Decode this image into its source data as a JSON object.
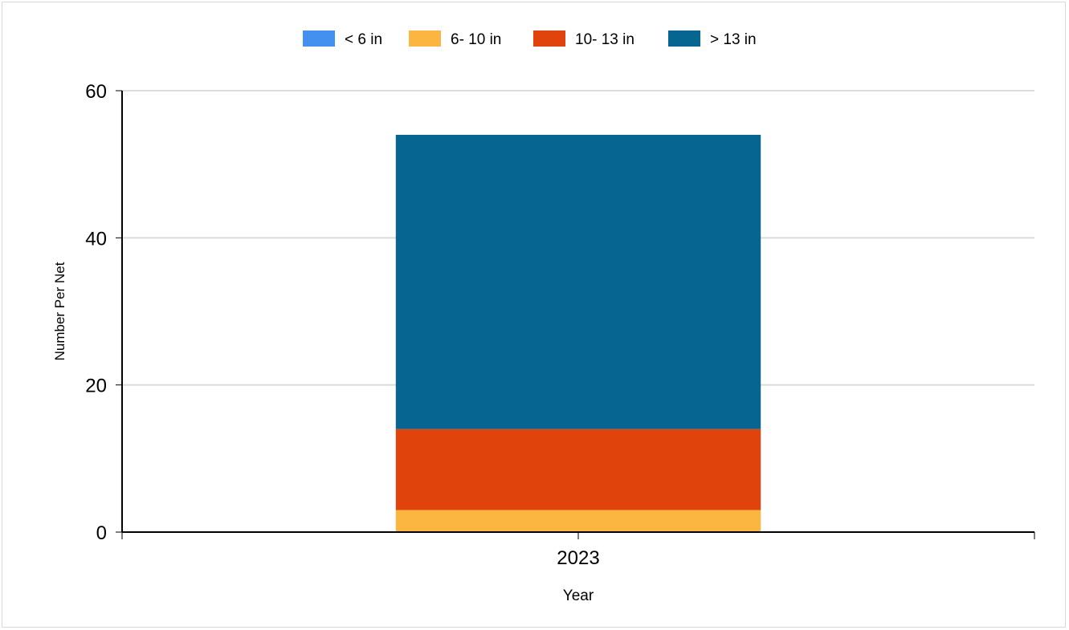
{
  "chart_data": {
    "type": "bar",
    "stacked": true,
    "categories": [
      "2023"
    ],
    "series": [
      {
        "name": "< 6 in",
        "values": [
          0
        ],
        "color": "#4390f0"
      },
      {
        "name": "6- 10 in",
        "values": [
          3
        ],
        "color": "#fab640"
      },
      {
        "name": "10- 13 in",
        "values": [
          11
        ],
        "color": "#e0440c"
      },
      {
        "name": "> 13 in",
        "values": [
          40
        ],
        "color": "#066591"
      }
    ],
    "xlabel": "Year",
    "ylabel": "Number Per Net",
    "ylim": [
      0,
      60
    ],
    "yticks": [
      0,
      20,
      40,
      60
    ],
    "grid": true,
    "legend_position": "top"
  }
}
